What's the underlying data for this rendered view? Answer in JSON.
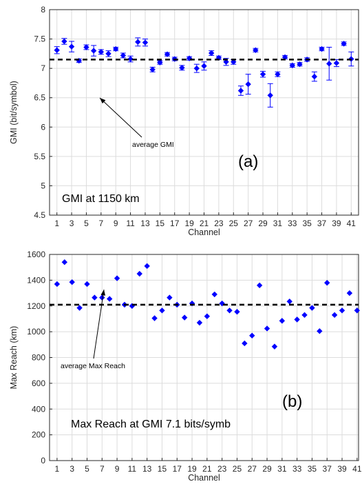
{
  "chart_data": [
    {
      "type": "scatter",
      "panel_label": "(a)",
      "inset_text": "GMI at 1150 km",
      "annotation": "average GMI",
      "annotation_channel": 7,
      "xlabel": "Channel",
      "ylabel": "GMI (bit/symbol)",
      "xlim": [
        0,
        42
      ],
      "ylim": [
        4.5,
        8
      ],
      "xticks": [
        1,
        3,
        5,
        7,
        9,
        11,
        13,
        15,
        17,
        19,
        21,
        23,
        25,
        27,
        29,
        31,
        33,
        35,
        37,
        39,
        41
      ],
      "yticks": [
        4.5,
        5,
        5.5,
        6,
        6.5,
        7,
        7.5,
        8
      ],
      "grid": true,
      "average": 7.15,
      "x": [
        1,
        2,
        3,
        4,
        5,
        6,
        7,
        8,
        9,
        10,
        11,
        12,
        13,
        14,
        15,
        16,
        17,
        18,
        19,
        20,
        21,
        22,
        23,
        24,
        25,
        26,
        27,
        28,
        29,
        30,
        31,
        32,
        33,
        34,
        35,
        36,
        37,
        38,
        39,
        40,
        41
      ],
      "values": [
        7.31,
        7.46,
        7.37,
        7.13,
        7.36,
        7.3,
        7.28,
        7.25,
        7.33,
        7.22,
        7.16,
        7.45,
        7.44,
        6.98,
        7.1,
        7.24,
        7.16,
        7.01,
        7.17,
        7.0,
        7.04,
        7.26,
        7.18,
        7.11,
        7.11,
        6.62,
        6.73,
        7.31,
        6.9,
        6.54,
        6.9,
        7.19,
        7.05,
        7.07,
        7.15,
        6.86,
        7.33,
        7.08,
        7.09,
        7.42,
        7.16
      ],
      "error": [
        0.06,
        0.05,
        0.09,
        0.03,
        0.04,
        0.09,
        0.04,
        0.05,
        0.03,
        0.04,
        0.05,
        0.07,
        0.06,
        0.04,
        0.03,
        0.03,
        0.03,
        0.04,
        0.03,
        0.07,
        0.07,
        0.04,
        0.03,
        0.06,
        0.04,
        0.08,
        0.17,
        0.03,
        0.05,
        0.2,
        0.04,
        0.03,
        0.03,
        0.03,
        0.03,
        0.08,
        0.03,
        0.28,
        0.06,
        0.03,
        0.12
      ]
    },
    {
      "type": "scatter",
      "panel_label": "(b)",
      "inset_text": "Max Reach at GMI 7.1 bits/symb",
      "annotation": "average Max Reach",
      "annotation_channel": 7,
      "xlabel": "Channel",
      "ylabel": "Max Reach (km)",
      "xlim": [
        0,
        41.2
      ],
      "ylim": [
        0,
        1600
      ],
      "xticks": [
        1,
        3,
        5,
        7,
        9,
        11,
        13,
        15,
        17,
        19,
        21,
        23,
        25,
        27,
        29,
        31,
        33,
        35,
        37,
        39,
        41
      ],
      "xtick_labels": [
        "1",
        "3",
        "5",
        "7",
        "9",
        "11",
        "13",
        "15",
        "17",
        "19",
        "21",
        "23",
        "25",
        "27",
        "29",
        "31",
        "33",
        "35",
        "37",
        "39",
        "41"
      ],
      "yticks": [
        0,
        200,
        400,
        600,
        800,
        1000,
        1200,
        1400,
        1600
      ],
      "grid": true,
      "average": 1210,
      "x": [
        1,
        2,
        3,
        4,
        5,
        6,
        7,
        8,
        9,
        10,
        11,
        12,
        13,
        14,
        15,
        16,
        17,
        18,
        19,
        20,
        21,
        22,
        23,
        24,
        25,
        26,
        27,
        28,
        29,
        30,
        31,
        32,
        33,
        34,
        35,
        36,
        37,
        38,
        39,
        40,
        41
      ],
      "values": [
        1370,
        1540,
        1385,
        1185,
        1370,
        1265,
        1265,
        1255,
        1415,
        1210,
        1200,
        1450,
        1510,
        1105,
        1165,
        1265,
        1210,
        1110,
        1220,
        1070,
        1120,
        1290,
        1220,
        1165,
        1155,
        910,
        970,
        1360,
        1025,
        885,
        1085,
        1235,
        1095,
        1130,
        1185,
        1005,
        1380,
        1130,
        1165,
        1300,
        1165
      ]
    }
  ]
}
